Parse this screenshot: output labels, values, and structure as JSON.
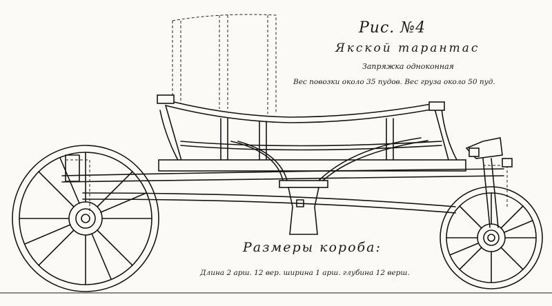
{
  "captions": {
    "figure_title": "Рис. №4",
    "name": "Якской тарантас",
    "harness": "Запряжка одноконная",
    "weight": "Вес повозки около 35 пудов. Вес груза около 50 пуд.",
    "dims_title": "Размеры короба:",
    "dims": "Длина 2 арш. 12 вер. ширина 1 арш. глубина 12 верш."
  }
}
